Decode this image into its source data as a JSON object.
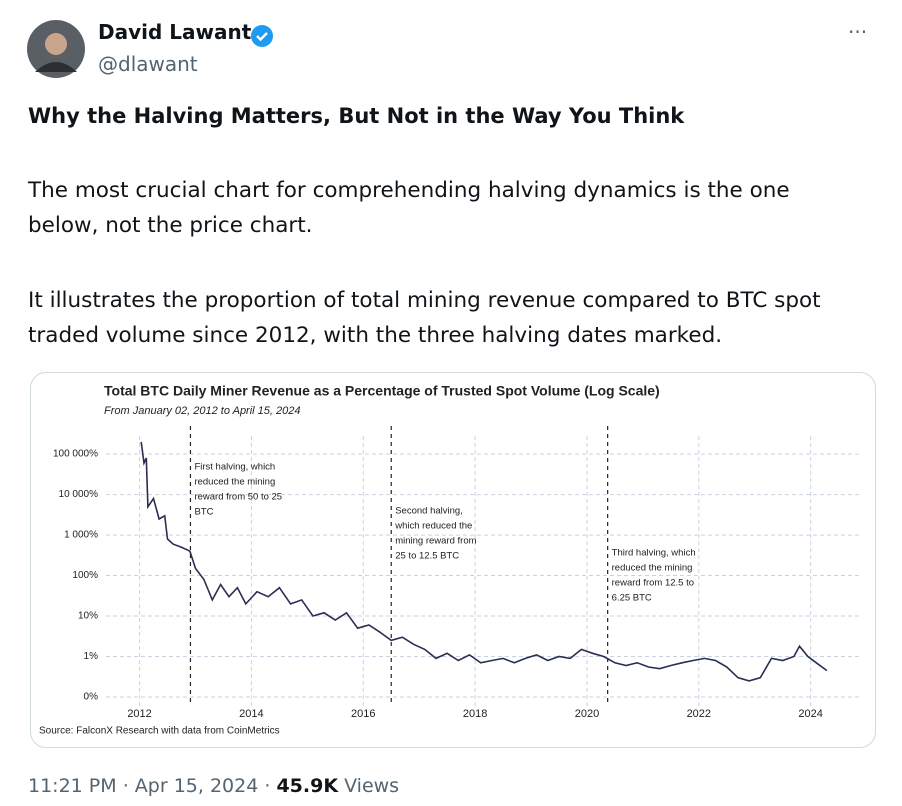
{
  "tweet": {
    "name": "David Lawant",
    "handle": "@dlawant",
    "heading": "Why the Halving Matters, But Not in the Way You Think",
    "paragraphs": [
      "The most crucial chart for comprehending halving dynamics is the one below, not the price chart.",
      "It illustrates the proportion of total mining revenue compared to BTC spot traded volume since 2012, with the three halving dates marked."
    ],
    "time": "11:21 PM",
    "date": "Apr 15, 2024",
    "views_count": "45.9K",
    "views_label": "Views"
  },
  "chart_data": {
    "type": "line",
    "title": "Total BTC Daily Miner Revenue as a Percentage of Trusted Spot Volume (Log Scale)",
    "subtitle": "From January 02, 2012 to April 15, 2024",
    "source": "Source: FalconX Research with data from CoinMetrics",
    "log_scale": true,
    "grid": true,
    "xlim": [
      2011.4,
      2024.9
    ],
    "xticks": [
      2012,
      2014,
      2016,
      2018,
      2020,
      2022,
      2024
    ],
    "ylim": [
      0.06,
      280000
    ],
    "yticks": [
      {
        "value": 100000,
        "label": "100 000%"
      },
      {
        "value": 10000,
        "label": "10 000%"
      },
      {
        "value": 1000,
        "label": "1 000%"
      },
      {
        "value": 100,
        "label": "100%"
      },
      {
        "value": 10,
        "label": "10%"
      },
      {
        "value": 1,
        "label": "1%"
      },
      {
        "value": 0.1,
        "label": "0%"
      }
    ],
    "series": [
      {
        "color": "#2b2d52",
        "x": [
          2012.03,
          2012.08,
          2012.12,
          2012.15,
          2012.25,
          2012.35,
          2012.45,
          2012.5,
          2012.6,
          2012.75,
          2012.9,
          2013.0,
          2013.15,
          2013.3,
          2013.45,
          2013.6,
          2013.75,
          2013.9,
          2014.1,
          2014.3,
          2014.5,
          2014.7,
          2014.9,
          2015.1,
          2015.3,
          2015.5,
          2015.7,
          2015.9,
          2016.1,
          2016.3,
          2016.5,
          2016.7,
          2016.9,
          2017.1,
          2017.3,
          2017.5,
          2017.7,
          2017.9,
          2018.1,
          2018.3,
          2018.5,
          2018.7,
          2018.9,
          2019.1,
          2019.3,
          2019.5,
          2019.7,
          2019.9,
          2020.1,
          2020.3,
          2020.5,
          2020.7,
          2020.9,
          2021.1,
          2021.3,
          2021.5,
          2021.7,
          2021.9,
          2022.1,
          2022.3,
          2022.5,
          2022.7,
          2022.9,
          2023.1,
          2023.3,
          2023.5,
          2023.7,
          2023.8,
          2023.95,
          2024.1,
          2024.29
        ],
        "values": [
          200000,
          60000,
          80000,
          5000,
          8000,
          2500,
          3000,
          800,
          600,
          500,
          400,
          150,
          80,
          25,
          60,
          30,
          50,
          20,
          40,
          30,
          50,
          20,
          25,
          10,
          12,
          8,
          12,
          5,
          6,
          4,
          2.5,
          3,
          2,
          1.5,
          0.9,
          1.2,
          0.8,
          1.1,
          0.7,
          0.8,
          0.9,
          0.7,
          0.9,
          1.1,
          0.8,
          1.0,
          0.9,
          1.5,
          1.2,
          1.0,
          0.7,
          0.6,
          0.7,
          0.55,
          0.5,
          0.6,
          0.7,
          0.8,
          0.9,
          0.8,
          0.55,
          0.3,
          0.25,
          0.3,
          0.9,
          0.8,
          1.0,
          1.8,
          1.0,
          0.7,
          0.45
        ]
      }
    ],
    "annotations": [
      {
        "x": 2012.91,
        "lines": [
          "First halving, which",
          "reduced the mining",
          "reward from 50 to 25",
          "BTC"
        ]
      },
      {
        "x": 2016.5,
        "lines": [
          "Second halving,",
          "which reduced the",
          "mining reward from",
          "25 to 12.5 BTC"
        ]
      },
      {
        "x": 2020.37,
        "lines": [
          "Third halving, which",
          "reduced the mining",
          "reward from 12.5 to",
          "6.25 BTC"
        ]
      }
    ]
  }
}
